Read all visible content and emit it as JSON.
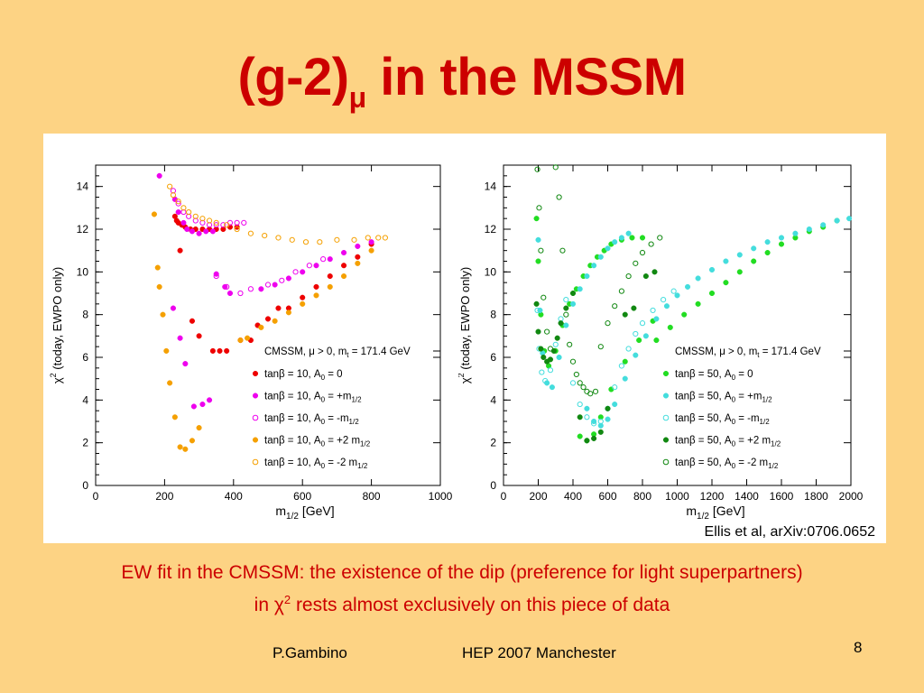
{
  "slide": {
    "title_main": "(g-2)",
    "title_sub": "μ",
    "title_rest": " in the MSSM",
    "caption_line1": "EW fit in the CMSSM: the existence of the dip (preference for light superpartners)",
    "caption_line2_pre": "in χ",
    "caption_line2_sup": "2",
    "caption_line2_post": " rests almost exclusively on this piece of data",
    "footer_author": "P.Gambino",
    "footer_event": "HEP 2007 Manchester",
    "page_number": "8",
    "credit": "Ellis et al, arXiv:0706.0652"
  },
  "colors": {
    "background": "#FDD384",
    "title": "#CC0000",
    "red": "#EE0000",
    "magenta": "#EE00EE",
    "orange": "#F5A000",
    "green": "#22DD22",
    "cyan": "#44DDDD",
    "darkgreen": "#118811"
  },
  "chart_data": [
    {
      "type": "scatter",
      "ylabel": "χ² (today, EWPO only)",
      "xlabel": "m1/2 [GeV]",
      "xlim": [
        0,
        1000
      ],
      "ylim": [
        0,
        15
      ],
      "xticks": [
        "0",
        "200",
        "400",
        "600",
        "800",
        "1000"
      ],
      "yticks": [
        "0",
        "2",
        "4",
        "6",
        "8",
        "10",
        "12",
        "14"
      ],
      "legend_title": "CMSSM, μ > 0, mt = 171.4 GeV",
      "legend_position": "lower-right",
      "series": [
        {
          "name": "tanβ = 10, A0 = 0",
          "color": "#EE0000",
          "marker": "filled-circle",
          "x": [
            230,
            235,
            240,
            250,
            260,
            275,
            290,
            310,
            330,
            350,
            370,
            390,
            410,
            245,
            280,
            300,
            340,
            360,
            380,
            420,
            450,
            470,
            500,
            530,
            560,
            600,
            640,
            680,
            720,
            760,
            800
          ],
          "y": [
            12.6,
            12.4,
            12.3,
            12.2,
            12.1,
            12.0,
            12.0,
            12.0,
            12.0,
            12.0,
            12.0,
            12.1,
            12.1,
            11.0,
            7.7,
            7.0,
            6.3,
            6.3,
            6.3,
            6.8,
            6.8,
            7.5,
            7.8,
            8.3,
            8.3,
            8.8,
            9.3,
            9.8,
            10.3,
            10.7,
            11.3
          ]
        },
        {
          "name": "tanβ = 10, A0 = +m1/2",
          "color": "#EE00EE",
          "marker": "filled-circle",
          "x": [
            185,
            230,
            240,
            255,
            265,
            280,
            300,
            320,
            340,
            225,
            245,
            260,
            285,
            310,
            330,
            350,
            375,
            390,
            480,
            520,
            560,
            600,
            640,
            680,
            720,
            760,
            800
          ],
          "y": [
            14.5,
            13.4,
            12.8,
            12.3,
            12.0,
            11.9,
            11.8,
            11.9,
            11.9,
            8.3,
            6.9,
            5.7,
            3.7,
            3.8,
            4.0,
            9.9,
            9.3,
            9.0,
            9.2,
            9.4,
            9.7,
            10.0,
            10.3,
            10.6,
            10.9,
            11.2,
            11.4
          ]
        },
        {
          "name": "tanβ = 10, A0 = -m1/2",
          "color": "#EE00EE",
          "marker": "open-circle",
          "x": [
            225,
            240,
            255,
            270,
            290,
            310,
            330,
            350,
            370,
            390,
            410,
            430,
            350,
            380,
            420,
            450,
            500,
            540,
            580,
            620,
            660
          ],
          "y": [
            13.8,
            13.2,
            12.8,
            12.6,
            12.4,
            12.3,
            12.2,
            12.2,
            12.2,
            12.3,
            12.3,
            12.3,
            9.8,
            9.3,
            9.0,
            9.2,
            9.4,
            9.6,
            10.0,
            10.3,
            10.6
          ]
        },
        {
          "name": "tanβ = 10, A0 = +2 m1/2",
          "color": "#F5A000",
          "marker": "filled-circle",
          "x": [
            170,
            180,
            185,
            195,
            205,
            215,
            230,
            245,
            260,
            280,
            300,
            420,
            440,
            480,
            520,
            560,
            600,
            640,
            680,
            720,
            760,
            800
          ],
          "y": [
            12.7,
            10.2,
            9.3,
            8.0,
            6.3,
            4.8,
            3.2,
            1.8,
            1.7,
            2.1,
            2.7,
            6.8,
            6.9,
            7.4,
            7.7,
            8.1,
            8.5,
            8.9,
            9.3,
            9.8,
            10.4,
            11.0
          ]
        },
        {
          "name": "tanβ = 10, A0 = -2 m1/2",
          "color": "#F5A000",
          "marker": "open-circle",
          "x": [
            215,
            225,
            240,
            255,
            270,
            290,
            310,
            330,
            350,
            380,
            410,
            450,
            490,
            530,
            570,
            610,
            650,
            700,
            750,
            790,
            820,
            840
          ],
          "y": [
            14.0,
            13.6,
            13.3,
            13.0,
            12.8,
            12.6,
            12.5,
            12.4,
            12.3,
            12.2,
            12.0,
            11.8,
            11.7,
            11.6,
            11.5,
            11.4,
            11.4,
            11.5,
            11.5,
            11.6,
            11.6,
            11.6
          ]
        }
      ]
    },
    {
      "type": "scatter",
      "ylabel": "χ² (today, EWPO only)",
      "xlabel": "m1/2 [GeV]",
      "xlim": [
        0,
        2000
      ],
      "ylim": [
        0,
        15
      ],
      "xticks": [
        "0",
        "200",
        "400",
        "600",
        "800",
        "1000",
        "1200",
        "1400",
        "1600",
        "1800",
        "2000"
      ],
      "yticks": [
        "0",
        "2",
        "4",
        "6",
        "8",
        "10",
        "12",
        "14"
      ],
      "legend_title": "CMSSM, μ > 0, mt = 171.4 GeV",
      "legend_position": "lower-right",
      "series": [
        {
          "name": "tanβ = 50, A0 = 0",
          "color": "#22DD22",
          "marker": "filled-circle",
          "x": [
            190,
            200,
            215,
            235,
            260,
            300,
            340,
            380,
            420,
            460,
            500,
            540,
            580,
            620,
            680,
            740,
            800,
            880,
            960,
            1040,
            1120,
            1200,
            1280,
            1360,
            1440,
            1520,
            1600,
            1680,
            1760,
            1840,
            1920,
            440,
            480,
            520,
            560,
            620,
            700,
            780,
            860
          ],
          "y": [
            12.5,
            10.5,
            8.0,
            6.3,
            5.6,
            6.3,
            7.5,
            8.5,
            9.2,
            9.8,
            10.3,
            10.7,
            11.0,
            11.3,
            11.5,
            11.6,
            11.6,
            6.8,
            7.4,
            8.0,
            8.5,
            9.0,
            9.5,
            10.0,
            10.5,
            10.9,
            11.3,
            11.6,
            11.9,
            12.1,
            12.4,
            2.3,
            2.1,
            2.4,
            3.2,
            4.5,
            5.8,
            6.8,
            7.7
          ]
        },
        {
          "name": "tanβ = 50, A0 = +m1/2",
          "color": "#44DDDD",
          "marker": "filled-circle",
          "x": [
            200,
            210,
            225,
            250,
            280,
            320,
            360,
            400,
            440,
            480,
            520,
            560,
            600,
            640,
            680,
            720,
            480,
            520,
            560,
            600,
            640,
            700,
            760,
            820,
            880,
            940,
            1000,
            1060,
            1120,
            1200,
            1280,
            1360,
            1440,
            1520,
            1600,
            1680,
            1760,
            1840,
            1920,
            1990
          ],
          "y": [
            11.5,
            8.2,
            6.2,
            4.8,
            4.6,
            6.0,
            7.5,
            8.5,
            9.2,
            9.8,
            10.3,
            10.7,
            11.1,
            11.4,
            11.6,
            11.8,
            3.6,
            3.0,
            2.8,
            3.1,
            3.8,
            5.0,
            6.1,
            7.0,
            7.8,
            8.4,
            8.9,
            9.3,
            9.7,
            10.1,
            10.5,
            10.8,
            11.1,
            11.4,
            11.6,
            11.8,
            12.0,
            12.2,
            12.4,
            12.5
          ]
        },
        {
          "name": "tanβ = 50, A0 = -m1/2",
          "color": "#44DDDD",
          "marker": "open-circle",
          "x": [
            195,
            205,
            220,
            240,
            270,
            300,
            330,
            360,
            400,
            440,
            480,
            520,
            560,
            600,
            640,
            680,
            720,
            760,
            800,
            860,
            920,
            980
          ],
          "y": [
            8.2,
            6.4,
            5.3,
            4.9,
            5.4,
            6.6,
            7.8,
            8.7,
            4.8,
            3.8,
            3.2,
            2.9,
            3.0,
            3.6,
            4.6,
            5.6,
            6.4,
            7.1,
            7.6,
            8.2,
            8.7,
            9.1
          ]
        },
        {
          "name": "tanβ = 50, A0 = +2 m1/2",
          "color": "#118811",
          "marker": "filled-circle",
          "x": [
            190,
            200,
            215,
            230,
            250,
            270,
            290,
            310,
            330,
            360,
            400,
            440,
            480,
            520,
            560,
            600,
            700,
            750,
            820,
            870
          ],
          "y": [
            8.5,
            7.2,
            6.4,
            6.0,
            5.8,
            5.9,
            6.3,
            6.9,
            7.6,
            8.3,
            9.0,
            3.2,
            2.1,
            2.2,
            2.5,
            3.6,
            8.0,
            8.3,
            9.8,
            10.0
          ]
        },
        {
          "name": "tanβ = 50, A0 = -2 m1/2",
          "color": "#118811",
          "marker": "open-circle",
          "x": [
            195,
            205,
            215,
            230,
            250,
            270,
            300,
            320,
            340,
            360,
            380,
            400,
            420,
            440,
            460,
            480,
            500,
            530,
            560,
            600,
            640,
            680,
            720,
            760,
            800,
            850,
            900
          ],
          "y": [
            14.8,
            13.0,
            11.0,
            8.8,
            7.2,
            6.4,
            14.9,
            13.5,
            11.0,
            8.0,
            6.6,
            5.8,
            5.2,
            4.8,
            4.6,
            4.4,
            4.3,
            4.4,
            6.5,
            7.6,
            8.4,
            9.1,
            9.8,
            10.4,
            10.9,
            11.3,
            11.6
          ]
        }
      ]
    }
  ]
}
